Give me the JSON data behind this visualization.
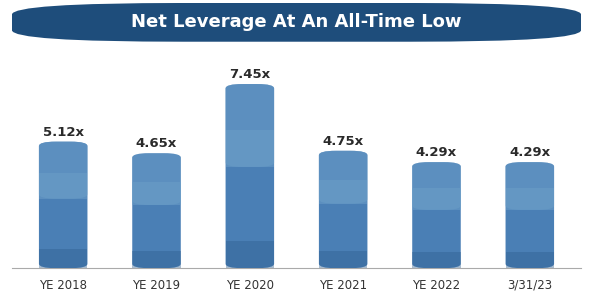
{
  "title": "Net Leverage At An All-Time Low",
  "title_bg_color": "#1e4d7b",
  "title_text_color": "#ffffff",
  "categories": [
    "YE 2018",
    "YE 2019",
    "YE 2020",
    "YE 2021",
    "YE 2022",
    "3/31/23"
  ],
  "values": [
    5.12,
    4.65,
    7.45,
    4.75,
    4.29,
    4.29
  ],
  "labels": [
    "5.12x",
    "4.65x",
    "7.45x",
    "4.75x",
    "4.29x",
    "4.29x"
  ],
  "bar_color_light": "#6b9ec8",
  "bar_color_mid": "#4a7fb5",
  "bar_color_dark": "#2e5e8e",
  "bg_color": "#ffffff",
  "ylim": [
    0,
    8.8
  ],
  "label_fontsize": 9.5,
  "category_fontsize": 8.5,
  "label_color": "#2a2a2a",
  "bar_width": 0.52,
  "rounding_size": 0.18
}
